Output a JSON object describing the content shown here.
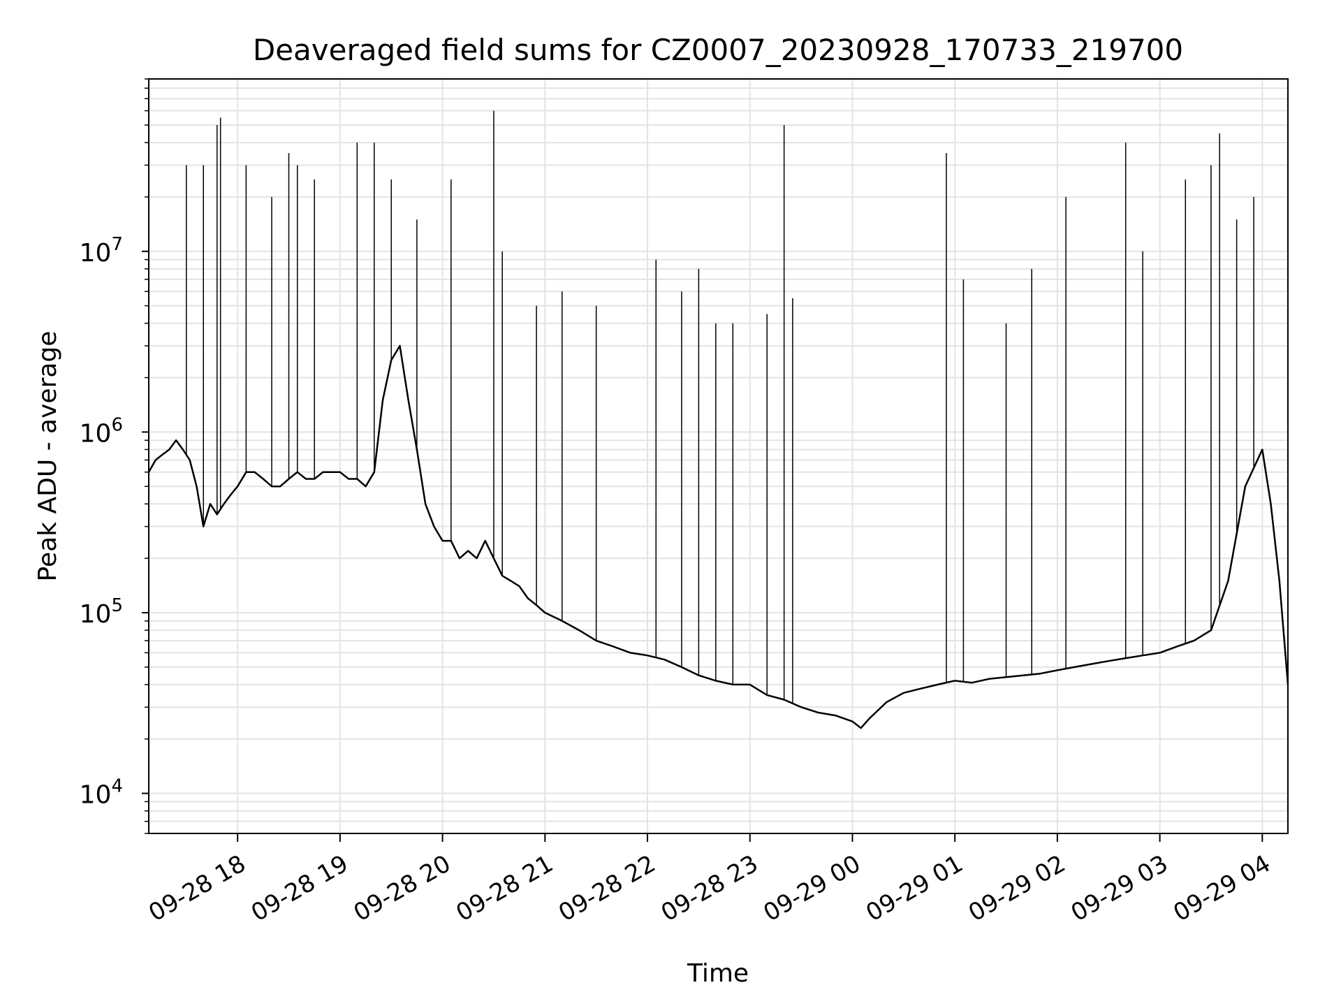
{
  "chart_data": {
    "type": "line",
    "title": "Deaveraged field sums for CZ0007_20230928_170733_219700",
    "xlabel": "Time",
    "ylabel": "Peak ADU - average",
    "yscale": "log",
    "grid": true,
    "xlim": [
      "2023-09-28 17:08",
      "2023-09-29 04:15"
    ],
    "ylim": [
      6000,
      90000000
    ],
    "x_ticks": [
      "2023-09-28 18:00",
      "2023-09-28 19:00",
      "2023-09-28 20:00",
      "2023-09-28 21:00",
      "2023-09-28 22:00",
      "2023-09-28 23:00",
      "2023-09-29 00:00",
      "2023-09-29 01:00",
      "2023-09-29 02:00",
      "2023-09-29 03:00",
      "2023-09-29 04:00"
    ],
    "x_tick_labels": [
      "09-28 18",
      "09-28 19",
      "09-28 20",
      "09-28 21",
      "09-28 22",
      "09-28 23",
      "09-29 00",
      "09-29 01",
      "09-29 02",
      "09-29 03",
      "09-29 04"
    ],
    "y_tick_exponents": [
      "4",
      "5",
      "6",
      "7"
    ],
    "series": [
      {
        "color": "#000000",
        "x": [
          "2023-09-28 17:08",
          "2023-09-28 17:12",
          "2023-09-28 17:16",
          "2023-09-28 17:20",
          "2023-09-28 17:24",
          "2023-09-28 17:28",
          "2023-09-28 17:32",
          "2023-09-28 17:36",
          "2023-09-28 17:40",
          "2023-09-28 17:44",
          "2023-09-28 17:48",
          "2023-09-28 17:52",
          "2023-09-28 17:56",
          "2023-09-28 18:00",
          "2023-09-28 18:05",
          "2023-09-28 18:10",
          "2023-09-28 18:15",
          "2023-09-28 18:20",
          "2023-09-28 18:25",
          "2023-09-28 18:30",
          "2023-09-28 18:35",
          "2023-09-28 18:40",
          "2023-09-28 18:45",
          "2023-09-28 18:50",
          "2023-09-28 18:55",
          "2023-09-28 19:00",
          "2023-09-28 19:05",
          "2023-09-28 19:10",
          "2023-09-28 19:15",
          "2023-09-28 19:20",
          "2023-09-28 19:25",
          "2023-09-28 19:30",
          "2023-09-28 19:35",
          "2023-09-28 19:40",
          "2023-09-28 19:45",
          "2023-09-28 19:50",
          "2023-09-28 19:55",
          "2023-09-28 20:00",
          "2023-09-28 20:05",
          "2023-09-28 20:10",
          "2023-09-28 20:15",
          "2023-09-28 20:20",
          "2023-09-28 20:25",
          "2023-09-28 20:30",
          "2023-09-28 20:35",
          "2023-09-28 20:40",
          "2023-09-28 20:45",
          "2023-09-28 20:50",
          "2023-09-28 20:55",
          "2023-09-28 21:00",
          "2023-09-28 21:10",
          "2023-09-28 21:20",
          "2023-09-28 21:30",
          "2023-09-28 21:40",
          "2023-09-28 21:50",
          "2023-09-28 22:00",
          "2023-09-28 22:10",
          "2023-09-28 22:20",
          "2023-09-28 22:30",
          "2023-09-28 22:40",
          "2023-09-28 22:50",
          "2023-09-28 23:00",
          "2023-09-28 23:10",
          "2023-09-28 23:20",
          "2023-09-28 23:30",
          "2023-09-28 23:40",
          "2023-09-28 23:50",
          "2023-09-29 00:00",
          "2023-09-29 00:05",
          "2023-09-29 00:10",
          "2023-09-29 00:20",
          "2023-09-29 00:30",
          "2023-09-29 00:40",
          "2023-09-29 00:50",
          "2023-09-29 01:00",
          "2023-09-29 01:10",
          "2023-09-29 01:20",
          "2023-09-29 01:30",
          "2023-09-29 01:40",
          "2023-09-29 01:50",
          "2023-09-29 02:00",
          "2023-09-29 02:10",
          "2023-09-29 02:20",
          "2023-09-29 02:30",
          "2023-09-29 02:40",
          "2023-09-29 02:50",
          "2023-09-29 03:00",
          "2023-09-29 03:10",
          "2023-09-29 03:20",
          "2023-09-29 03:30",
          "2023-09-29 03:40",
          "2023-09-29 03:50",
          "2023-09-29 04:00",
          "2023-09-29 04:05",
          "2023-09-29 04:10",
          "2023-09-29 04:15"
        ],
        "y": [
          600000,
          700000,
          750000,
          800000,
          900000,
          800000,
          700000,
          500000,
          300000,
          400000,
          350000,
          400000,
          450000,
          500000,
          600000,
          600000,
          550000,
          500000,
          500000,
          550000,
          600000,
          550000,
          550000,
          600000,
          600000,
          600000,
          550000,
          550000,
          500000,
          600000,
          1500000,
          2500000,
          3000000,
          1500000,
          800000,
          400000,
          300000,
          250000,
          250000,
          200000,
          220000,
          200000,
          250000,
          200000,
          160000,
          150000,
          140000,
          120000,
          110000,
          100000,
          90000,
          80000,
          70000,
          65000,
          60000,
          58000,
          55000,
          50000,
          45000,
          42000,
          40000,
          40000,
          35000,
          33000,
          30000,
          28000,
          27000,
          25000,
          23000,
          26000,
          32000,
          36000,
          38000,
          40000,
          42000,
          41000,
          43000,
          44000,
          45000,
          46000,
          48000,
          50000,
          52000,
          54000,
          56000,
          58000,
          60000,
          65000,
          70000,
          80000,
          150000,
          500000,
          800000,
          400000,
          150000,
          40000
        ]
      }
    ],
    "spikes": {
      "x": [
        "2023-09-28 17:30",
        "2023-09-28 17:40",
        "2023-09-28 17:48",
        "2023-09-28 17:50",
        "2023-09-28 18:05",
        "2023-09-28 18:20",
        "2023-09-28 18:30",
        "2023-09-28 18:35",
        "2023-09-28 18:45",
        "2023-09-28 19:10",
        "2023-09-28 19:20",
        "2023-09-28 19:30",
        "2023-09-28 19:45",
        "2023-09-28 20:05",
        "2023-09-28 20:30",
        "2023-09-28 20:35",
        "2023-09-28 20:55",
        "2023-09-28 21:10",
        "2023-09-28 21:30",
        "2023-09-28 22:05",
        "2023-09-28 22:20",
        "2023-09-28 22:30",
        "2023-09-28 22:40",
        "2023-09-28 22:50",
        "2023-09-28 23:10",
        "2023-09-28 23:20",
        "2023-09-28 23:25",
        "2023-09-29 00:55",
        "2023-09-29 01:05",
        "2023-09-29 01:30",
        "2023-09-29 01:45",
        "2023-09-29 02:05",
        "2023-09-29 02:40",
        "2023-09-29 02:50",
        "2023-09-29 03:15",
        "2023-09-29 03:30",
        "2023-09-29 03:35",
        "2023-09-29 03:45",
        "2023-09-29 03:55"
      ],
      "y": [
        30000000,
        30000000,
        50000000,
        55000000,
        30000000,
        20000000,
        35000000,
        30000000,
        25000000,
        40000000,
        40000000,
        25000000,
        15000000,
        25000000,
        60000000,
        10000000,
        5000000,
        6000000,
        5000000,
        9000000,
        6000000,
        8000000,
        4000000,
        4000000,
        4500000,
        50000000,
        5500000,
        35000000,
        7000000,
        4000000,
        8000000,
        20000000,
        40000000,
        10000000,
        25000000,
        30000000,
        45000000,
        15000000,
        20000000
      ]
    }
  }
}
